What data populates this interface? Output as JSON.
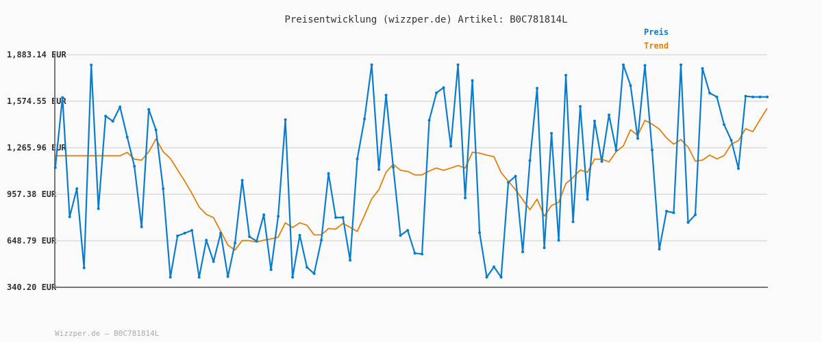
{
  "chart_data": {
    "type": "line",
    "title": "Preisentwicklung (wizzper.de) Artikel: B0C781814L",
    "footer": "Wizzper.de – B0C781814L",
    "xlabel": "",
    "ylabel": "",
    "ylim": [
      340.2,
      1883.14
    ],
    "y_ticks": [
      "1,883.14 EUR",
      "1,574.55 EUR",
      "1,265.96 EUR",
      "957.38 EUR",
      "648.79 EUR",
      "340.20 EUR"
    ],
    "y_tick_values": [
      1883.14,
      1574.55,
      1265.96,
      957.38,
      648.79,
      340.2
    ],
    "grid": true,
    "legend_position": "top-right",
    "series": [
      {
        "name": "Preis",
        "color": "#0a7ccc",
        "markers": true,
        "values": [
          1134,
          1599,
          808,
          994,
          469,
          1815,
          862,
          1476,
          1442,
          1537,
          1337,
          1143,
          741,
          1520,
          1384,
          994,
          407,
          681,
          699,
          718,
          407,
          653,
          511,
          700,
          411,
          634,
          1050,
          676,
          646,
          821,
          457,
          811,
          1452,
          407,
          685,
          473,
          431,
          653,
          1095,
          803,
          803,
          520,
          1192,
          1457,
          1816,
          1122,
          1615,
          1136,
          684,
          718,
          566,
          561,
          1448,
          1630,
          1665,
          1276,
          1816,
          933,
          1712,
          703,
          407,
          476,
          407,
          1036,
          1077,
          575,
          1181,
          1661,
          602,
          1361,
          652,
          1747,
          775,
          1540,
          924,
          1443,
          1175,
          1484,
          1249,
          1816,
          1679,
          1328,
          1812,
          1251,
          593,
          845,
          835,
          1816,
          770,
          821,
          1792,
          1629,
          1603,
          1420,
          1316,
          1128,
          1608,
          1603,
          1603,
          1603
        ]
      },
      {
        "name": "Trend",
        "color": "#e0800a",
        "markers": false,
        "values": [
          1213,
          1213,
          1213,
          1213,
          1213,
          1213,
          1213,
          1213,
          1213,
          1213,
          1235,
          1190,
          1184,
          1239,
          1324,
          1240,
          1195,
          1119,
          1044,
          963,
          873,
          824,
          802,
          711,
          620,
          587,
          650,
          650,
          640,
          653,
          661,
          673,
          768,
          737,
          768,
          752,
          688,
          688,
          730,
          726,
          764,
          738,
          711,
          817,
          927,
          988,
          1104,
          1157,
          1116,
          1109,
          1086,
          1086,
          1112,
          1131,
          1116,
          1131,
          1148,
          1131,
          1236,
          1230,
          1217,
          1207,
          1101,
          1044,
          988,
          922,
          855,
          925,
          812,
          882,
          904,
          1028,
          1069,
          1118,
          1103,
          1190,
          1190,
          1172,
          1240,
          1278,
          1385,
          1348,
          1448,
          1422,
          1390,
          1331,
          1290,
          1320,
          1271,
          1177,
          1184,
          1217,
          1192,
          1213,
          1289,
          1313,
          1392,
          1372,
          1452,
          1528
        ]
      }
    ]
  }
}
